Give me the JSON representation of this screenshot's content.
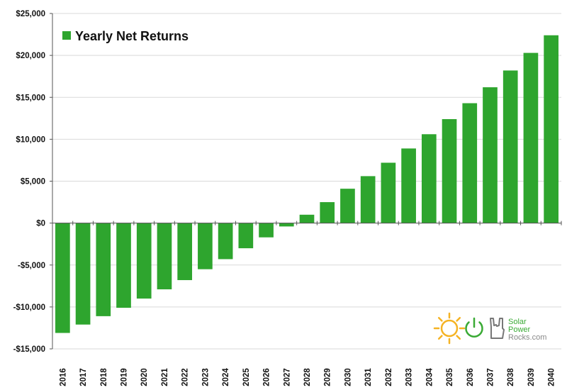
{
  "chart_data": {
    "type": "bar",
    "title": "",
    "xlabel": "",
    "ylabel": "",
    "categories": [
      "2016",
      "2017",
      "2018",
      "2019",
      "2020",
      "2021",
      "2022",
      "2023",
      "2024",
      "2025",
      "2026",
      "2027",
      "2028",
      "2029",
      "2030",
      "2031",
      "2032",
      "2033",
      "2034",
      "2035",
      "2036",
      "2037",
      "2038",
      "2039",
      "2040"
    ],
    "series": [
      {
        "name": "Yearly Net Returns",
        "values": [
          -13100,
          -12100,
          -11100,
          -10100,
          -9000,
          -7900,
          -6800,
          -5500,
          -4300,
          -3000,
          -1700,
          -400,
          1000,
          2500,
          4100,
          5600,
          7200,
          8900,
          10600,
          12400,
          14300,
          16200,
          18200,
          20300,
          22400
        ]
      }
    ],
    "ylim": [
      -15000,
      25000
    ],
    "yticks": [
      -15000,
      -10000,
      -5000,
      0,
      5000,
      10000,
      15000,
      20000,
      25000
    ],
    "ytick_labels": [
      "-$15,000",
      "-$10,000",
      "-$5,000",
      "$0",
      "$5,000",
      "$10,000",
      "$15,000",
      "$20,000",
      "$25,000"
    ],
    "grid": true,
    "legend_position": "top-left",
    "colors": {
      "bar": "#2ea52e",
      "grid": "#d9d9d9",
      "axis": "#555555"
    }
  },
  "logo": {
    "line1": "Solar",
    "line2": "Power",
    "line3": "Rocks.com",
    "colors": {
      "sun": "#f5b324",
      "power": "#3aaa35",
      "hand": "#777777",
      "text_green": "#3aaa35",
      "text_gray": "#888888"
    }
  }
}
